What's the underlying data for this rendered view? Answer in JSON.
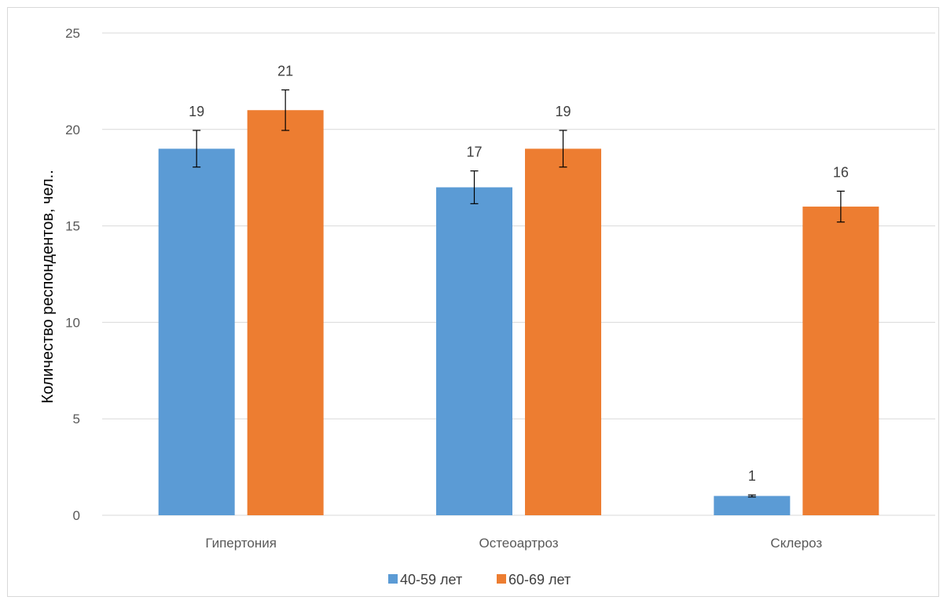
{
  "chart_data": {
    "type": "bar",
    "title": "",
    "xlabel": "",
    "ylabel": "Количество респондентов, чел..",
    "ylim": [
      0,
      25
    ],
    "yticks": [
      0,
      5,
      10,
      15,
      20,
      25
    ],
    "grid": true,
    "legend_position": "bottom",
    "categories": [
      "Гипертония",
      "Остеоартроз",
      "Склероз"
    ],
    "series": [
      {
        "name": "40-59 лет",
        "color": "#5b9bd5",
        "values": [
          19,
          17,
          1
        ],
        "error": [
          0.95,
          0.85,
          0.05
        ]
      },
      {
        "name": "60-69 лет",
        "color": "#ed7d31",
        "values": [
          21,
          19,
          16
        ],
        "error": [
          1.05,
          0.95,
          0.8
        ]
      }
    ]
  }
}
